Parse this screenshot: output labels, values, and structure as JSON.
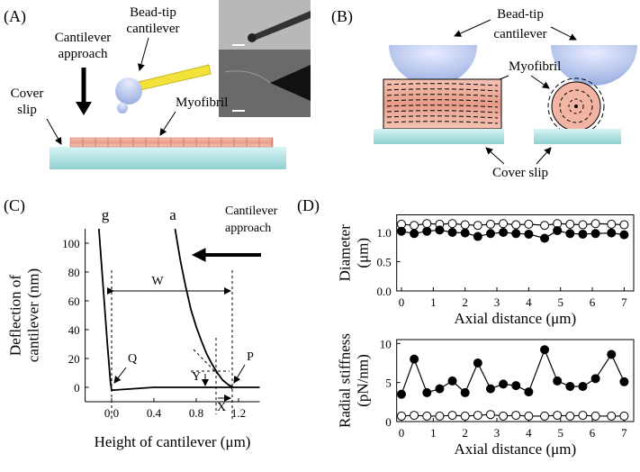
{
  "panels": {
    "A": {
      "label": "(A)",
      "bead_tip": [
        "Bead-tip",
        "cantilever"
      ],
      "approach": [
        "Cantilever",
        "approach"
      ],
      "cover_slip": [
        "Cover",
        "slip"
      ],
      "myofibril": "Myofibril"
    },
    "B": {
      "label": "(B)",
      "bead_tip": [
        "Bead-tip",
        "cantilever"
      ],
      "myofibril": "Myofibril",
      "cover_slip": "Cover slip"
    },
    "C": {
      "label": "(C)"
    },
    "D": {
      "label": "(D)"
    }
  },
  "chart_data": [
    {
      "type": "line",
      "xlabel": "Height of cantilever (μm)",
      "ylabel": [
        "Deflection of",
        "cantilever (nm)"
      ],
      "xlim": [
        -0.25,
        1.4
      ],
      "ylim": [
        -10,
        110
      ],
      "xticks": [
        {
          "value": 0,
          "label": "0.0"
        },
        0.4,
        0.8,
        1.2
      ],
      "yticks": [
        0,
        20,
        40,
        60,
        80,
        100
      ],
      "series": [
        {
          "color": "#000000",
          "x": [
            -0.12,
            -0.08,
            -0.04,
            -0.01,
            0.0,
            0.4,
            0.8,
            1.2,
            1.4
          ],
          "values": [
            110,
            70,
            30,
            3,
            -2,
            0,
            0,
            0,
            0
          ]
        },
        {
          "color": "#000000",
          "x": [
            0.6,
            0.65,
            0.7,
            0.75,
            0.8,
            0.85,
            0.9,
            0.95,
            1.0,
            1.05,
            1.1,
            1.15
          ],
          "values": [
            110,
            88,
            70,
            54,
            42,
            32,
            23,
            16,
            10,
            5,
            2,
            0
          ]
        }
      ],
      "annotations": [
        "g",
        "a",
        "W",
        "Q",
        "P",
        "Y",
        "X",
        "Cantilever",
        "approach"
      ]
    },
    {
      "type": "line",
      "xlabel": "Axial distance (μm)",
      "ylabel": [
        "Diameter",
        "(μm)"
      ],
      "xlim": [
        -0.15,
        7.3
      ],
      "ylim": [
        0,
        1.3
      ],
      "xticks": [
        0,
        1,
        2,
        3,
        4,
        5,
        6,
        7
      ],
      "yticks": [
        {
          "value": 0,
          "label": "0.0"
        },
        0.5,
        {
          "value": 1,
          "label": "1.0"
        }
      ],
      "x": [
        0,
        0.4,
        0.8,
        1.2,
        1.6,
        2.0,
        2.4,
        2.8,
        3.2,
        3.6,
        4.0,
        4.5,
        4.9,
        5.3,
        5.7,
        6.1,
        6.6,
        7.0
      ],
      "series": [
        {
          "color": "#000000",
          "marker_fill": "#ffffff",
          "values": [
            1.14,
            1.12,
            1.15,
            1.14,
            1.15,
            1.13,
            1.12,
            1.14,
            1.15,
            1.13,
            1.14,
            1.12,
            1.15,
            1.14,
            1.13,
            1.15,
            1.14,
            1.13
          ]
        },
        {
          "color": "#000000",
          "marker_fill": "#000000",
          "values": [
            1.02,
            0.98,
            1.02,
            1.04,
            1.0,
            0.99,
            0.93,
            0.98,
            1.0,
            0.98,
            0.97,
            0.9,
            1.03,
            0.98,
            0.97,
            0.98,
            0.99,
            0.96
          ]
        }
      ]
    },
    {
      "type": "line",
      "xlabel": "Axial distance (μm)",
      "ylabel": [
        "Radial stiffness",
        "(pN/nm)"
      ],
      "xlim": [
        -0.15,
        7.3
      ],
      "ylim": [
        0,
        10.5
      ],
      "xticks": [
        0,
        1,
        2,
        3,
        4,
        5,
        6,
        7
      ],
      "yticks": [
        0,
        5,
        10
      ],
      "x": [
        0,
        0.4,
        0.8,
        1.2,
        1.6,
        2.0,
        2.4,
        2.8,
        3.2,
        3.6,
        4.0,
        4.5,
        4.9,
        5.3,
        5.7,
        6.1,
        6.6,
        7.0
      ],
      "series": [
        {
          "color": "#000000",
          "marker_fill": "#ffffff",
          "values": [
            0.7,
            0.8,
            0.7,
            0.7,
            0.8,
            0.7,
            0.8,
            0.9,
            0.7,
            0.8,
            0.7,
            0.7,
            0.8,
            0.7,
            0.8,
            0.7,
            0.7,
            0.7
          ]
        },
        {
          "color": "#000000",
          "marker_fill": "#000000",
          "values": [
            3.5,
            8.0,
            3.7,
            4.2,
            5.2,
            3.7,
            7.5,
            4.2,
            4.8,
            4.6,
            3.8,
            9.2,
            5.2,
            4.5,
            4.5,
            5.5,
            8.6,
            5.1
          ]
        }
      ]
    }
  ]
}
